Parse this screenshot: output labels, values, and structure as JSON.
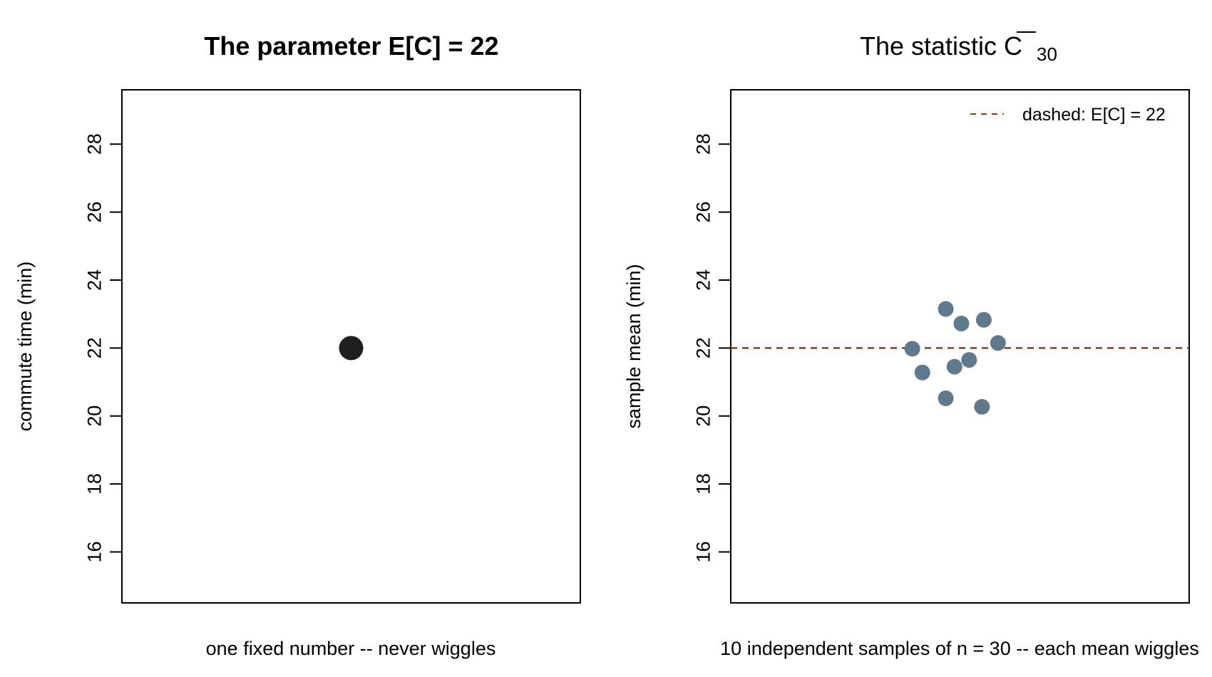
{
  "chart_data": [
    {
      "type": "scatter",
      "title": "The parameter E[C] = 22",
      "xlabel": "one fixed number -- never wiggles",
      "ylabel": "commute time (min)",
      "ylim": [
        14.5,
        29.6
      ],
      "yticks": [
        16,
        18,
        20,
        22,
        24,
        26,
        28
      ],
      "grid": false,
      "series": [
        {
          "points": [
            {
              "x": 0.5,
              "y": 22
            }
          ],
          "color": "#1f1f1f"
        }
      ]
    },
    {
      "type": "scatter",
      "title": "The statistic C",
      "title_overline": "C",
      "title_subscript": "30",
      "xlabel": "10 independent samples of n = 30 -- each mean wiggles",
      "ylabel": "sample mean (min)",
      "ylim": [
        14.5,
        29.6
      ],
      "yticks": [
        16,
        18,
        20,
        22,
        24,
        26,
        28
      ],
      "grid": false,
      "reference_line": {
        "y": 22,
        "style": "dashed",
        "color": "#8b3a1c"
      },
      "legend": {
        "position": "top-right",
        "entries": [
          {
            "label": "dashed: E[C] = 22",
            "style": "dashed",
            "color": "#8b3a1c"
          }
        ]
      },
      "series": [
        {
          "color": "#5e7a8c",
          "points": [
            {
              "x": 0.396,
              "y": 21.98
            },
            {
              "x": 0.418,
              "y": 21.28
            },
            {
              "x": 0.469,
              "y": 23.15
            },
            {
              "x": 0.469,
              "y": 20.52
            },
            {
              "x": 0.488,
              "y": 21.45
            },
            {
              "x": 0.503,
              "y": 22.72
            },
            {
              "x": 0.52,
              "y": 21.65
            },
            {
              "x": 0.552,
              "y": 22.83
            },
            {
              "x": 0.548,
              "y": 20.27
            },
            {
              "x": 0.583,
              "y": 22.15
            }
          ]
        }
      ]
    }
  ]
}
